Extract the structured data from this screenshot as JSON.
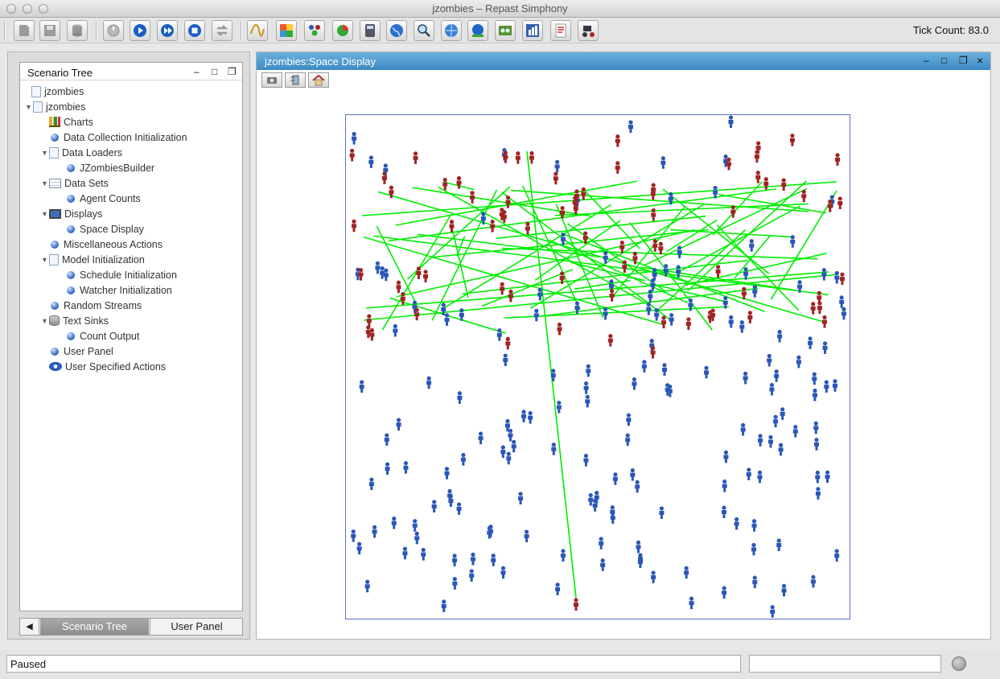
{
  "window": {
    "title": "jzombies – Repast Simphony"
  },
  "toolbar": {
    "tick_count": "Tick Count: 83.0",
    "buttons": [
      "save-icon",
      "save-disk-icon",
      "database-icon",
      "power-icon",
      "play-icon",
      "step-icon",
      "stop-icon",
      "reset-icon",
      "chart-wave-icon",
      "color-grid-icon",
      "agents-icon",
      "pie-chart-icon",
      "calculator-icon",
      "globe-icon",
      "magnifier-icon",
      "network-icon",
      "web-icon",
      "image-icon",
      "dashboard-icon",
      "notes-icon",
      "tractor-icon"
    ]
  },
  "scenario_tree": {
    "title": "Scenario Tree",
    "items": [
      {
        "label": "jzombies",
        "icon": "doc-icon",
        "level": 0,
        "expander": ""
      },
      {
        "label": "jzombies",
        "icon": "doc-icon",
        "level": 0,
        "expander": "▼"
      },
      {
        "label": "Charts",
        "icon": "chart-icon",
        "level": 1,
        "expander": ""
      },
      {
        "label": "Data Collection Initialization",
        "icon": "dot-icon",
        "level": 1,
        "expander": ""
      },
      {
        "label": "Data Loaders",
        "icon": "doc-icon",
        "level": 1,
        "expander": "▼"
      },
      {
        "label": "JZombiesBuilder",
        "icon": "dot-icon",
        "level": 2,
        "expander": ""
      },
      {
        "label": "Data Sets",
        "icon": "dataset-icon",
        "level": 1,
        "expander": "▼"
      },
      {
        "label": "Agent Counts",
        "icon": "dot-icon",
        "level": 2,
        "expander": ""
      },
      {
        "label": "Displays",
        "icon": "monitor-icon",
        "level": 1,
        "expander": "▼"
      },
      {
        "label": "Space Display",
        "icon": "dot-icon",
        "level": 2,
        "expander": ""
      },
      {
        "label": "Miscellaneous Actions",
        "icon": "dot-icon",
        "level": 1,
        "expander": ""
      },
      {
        "label": "Model Initialization",
        "icon": "doc-icon",
        "level": 1,
        "expander": "▼"
      },
      {
        "label": "Schedule Initialization",
        "icon": "dot-icon",
        "level": 2,
        "expander": ""
      },
      {
        "label": "Watcher Initialization",
        "icon": "dot-icon",
        "level": 2,
        "expander": ""
      },
      {
        "label": "Random Streams",
        "icon": "dot-icon",
        "level": 1,
        "expander": ""
      },
      {
        "label": "Text Sinks",
        "icon": "db-icon",
        "level": 1,
        "expander": "▼"
      },
      {
        "label": "Count Output",
        "icon": "dot-icon",
        "level": 2,
        "expander": ""
      },
      {
        "label": "User Panel",
        "icon": "dot-icon",
        "level": 1,
        "expander": ""
      },
      {
        "label": "User Specified Actions",
        "icon": "user-icon",
        "level": 1,
        "expander": ""
      }
    ],
    "tabs": {
      "scroll": "◀",
      "scenario": "Scenario Tree",
      "user": "User Panel"
    }
  },
  "display": {
    "title": "jzombies:Space Display",
    "controls": {
      "minimize": "–",
      "maximize": "□",
      "restore": "❐",
      "close": "×"
    },
    "toolbar": [
      "camera-icon",
      "settings-icon",
      "home-icon"
    ],
    "agent_colors": {
      "human": "#2a56b6",
      "zombie": "#a02424",
      "link": "#00ee00"
    }
  },
  "statusbar": {
    "status": "Paused"
  }
}
